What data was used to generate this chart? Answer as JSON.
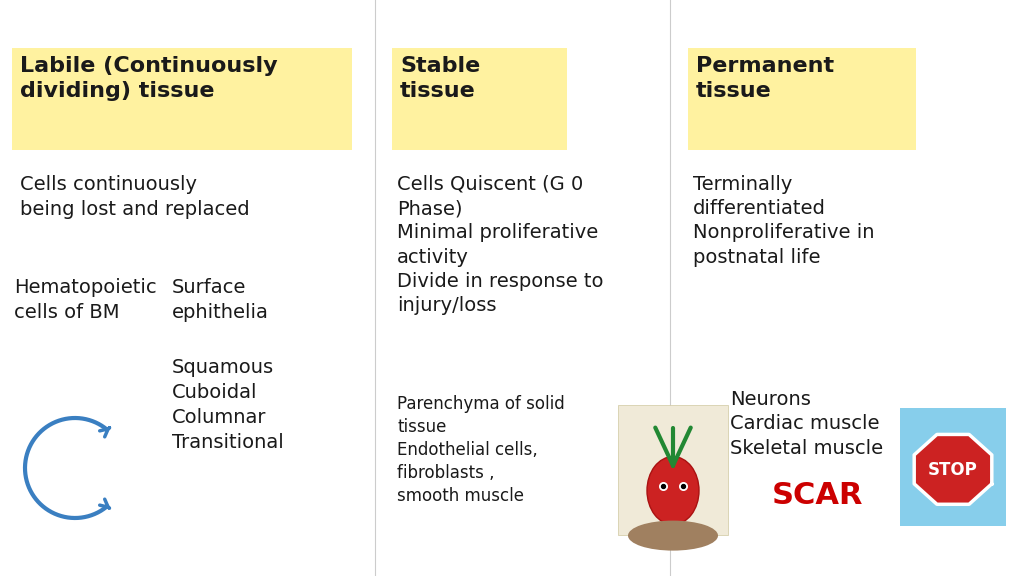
{
  "bg_color": "#ffffff",
  "yellow_box_color": "#FFF2A0",
  "text_color": "#1a1a1a",
  "scar_color": "#cc0000",
  "blue_arrow_color": "#3a7fc1",
  "col1_header": "Labile (Continuously\ndividing) tissue",
  "col2_header": "Stable\ntissue",
  "col3_header": "Permanent\ntissue",
  "col1_body1": "Cells continuously\nbeing lost and replaced",
  "col1_body2a": "Hematopoietic\ncells of BM",
  "col1_body2b": "Surface\nephithelia",
  "col1_body3": "Squamous\nCuboidal\nColumnar\nTransitional",
  "col2_body1": "Cells Quiscent (G 0\nPhase)\nMinimal proliferative\nactivity\nDivide in response to\ninjury/loss",
  "col2_body2": "Parenchyma of solid\ntissue\nEndothelial cells,\nfibroblasts ,\nsmooth muscle",
  "col3_body1": "Terminally\ndifferentiated\nNonproliferative in\npostnatal life",
  "col3_body2": "Neurons\nCardiac muscle\nSkeletal muscle",
  "col3_scar": "SCAR",
  "header_fontsize": 16,
  "main_fontsize": 14,
  "small_fontsize": 12,
  "scar_fontsize": 22
}
